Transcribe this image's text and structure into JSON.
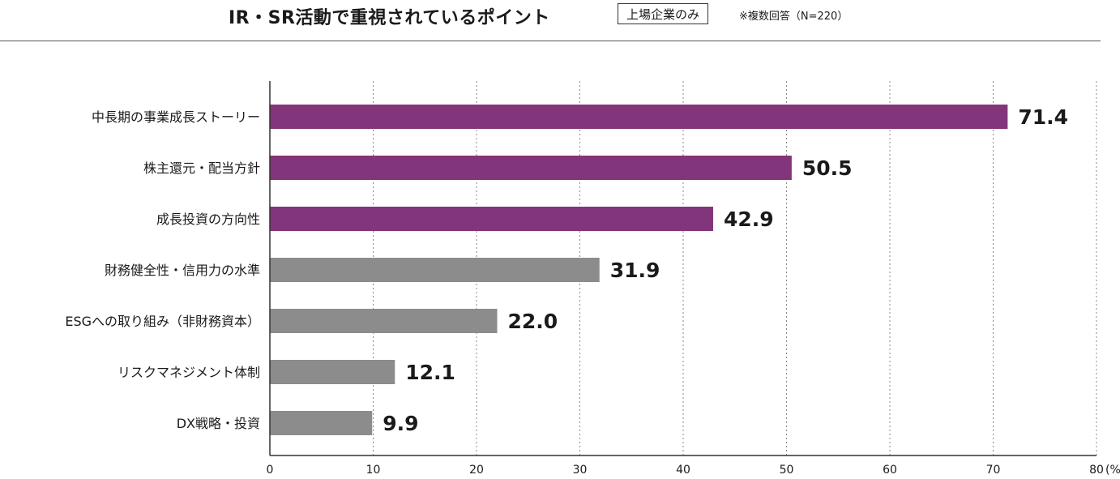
{
  "header": {
    "title": "IR・SR活動で重視されているポイント",
    "badge": "上場企業のみ",
    "note": "※複数回答（N=220）"
  },
  "colors": {
    "highlight": "#82357a",
    "normal": "#8c8c8c"
  },
  "chart_data": {
    "type": "bar",
    "orientation": "horizontal",
    "title": "IR・SR活動で重視されているポイント",
    "xlabel": "",
    "ylabel": "",
    "unit_label": "(%)",
    "xlim": [
      0,
      80
    ],
    "x_ticks": [
      0,
      10,
      20,
      30,
      40,
      50,
      60,
      70,
      80
    ],
    "grid": true,
    "categories": [
      "中長期の事業成長ストーリー",
      "株主還元・配当方針",
      "成長投資の方向性",
      "財務健全性・信用力の水準",
      "ESGへの取り組み（非財務資本）",
      "リスクマネジメント体制",
      "DX戦略・投資"
    ],
    "values": [
      71.4,
      50.5,
      42.9,
      31.9,
      22.0,
      12.1,
      9.9
    ],
    "value_labels": [
      "71.4",
      "50.5",
      "42.9",
      "31.9",
      "22.0",
      "12.1",
      "9.9"
    ],
    "highlighted": [
      true,
      true,
      true,
      false,
      false,
      false,
      false
    ]
  }
}
